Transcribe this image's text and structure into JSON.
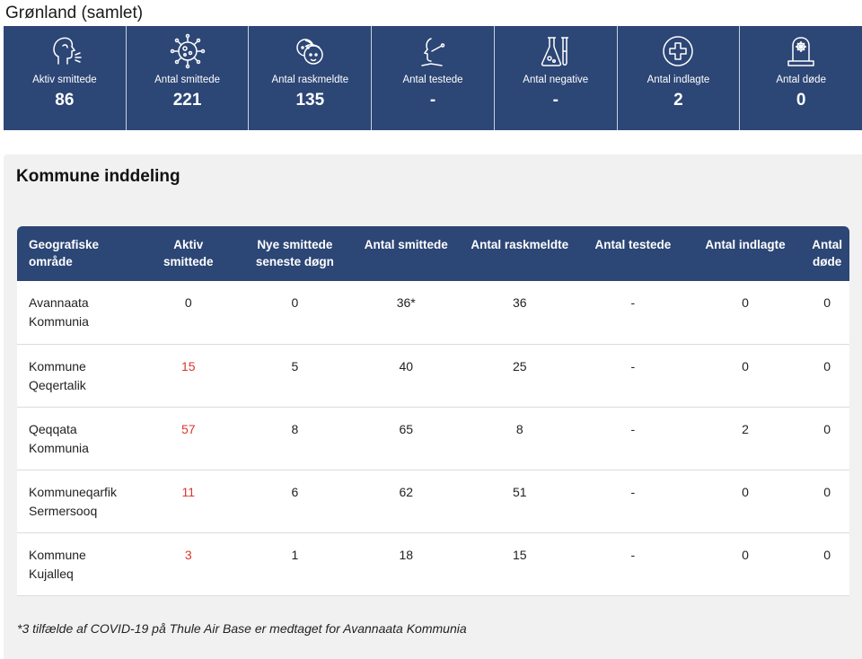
{
  "page_title": "Grønland (samlet)",
  "stats": [
    {
      "icon": "cough-icon",
      "label": "Aktiv smittede",
      "value": "86"
    },
    {
      "icon": "virus-icon",
      "label": "Antal smittede",
      "value": "221"
    },
    {
      "icon": "people-icon",
      "label": "Antal raskmeldte",
      "value": "135"
    },
    {
      "icon": "swab-test-icon",
      "label": "Antal testede",
      "value": "-"
    },
    {
      "icon": "lab-flask-icon",
      "label": "Antal negative",
      "value": "-"
    },
    {
      "icon": "hospital-cross-icon",
      "label": "Antal indlagte",
      "value": "2"
    },
    {
      "icon": "gravestone-icon",
      "label": "Antal døde",
      "value": "0"
    }
  ],
  "panel": {
    "title": "Kommune inddeling",
    "columns": [
      "Geografiske område",
      "Aktiv smittede",
      "Nye smittede seneste døgn",
      "Antal smittede",
      "Antal raskmeldte",
      "Antal testede",
      "Antal indlagte",
      "Antal døde"
    ],
    "rows": [
      [
        "Avannaata Kommunia",
        "0",
        "0",
        "36*",
        "36",
        "-",
        "0",
        "0"
      ],
      [
        "Kommune Qeqertalik",
        "15",
        "5",
        "40",
        "25",
        "-",
        "0",
        "0"
      ],
      [
        "Qeqqata Kommunia",
        "57",
        "8",
        "65",
        "8",
        "-",
        "2",
        "0"
      ],
      [
        "Kommuneqarfik Sermersooq",
        "11",
        "6",
        "62",
        "51",
        "-",
        "0",
        "0"
      ],
      [
        "Kommune Kujalleq",
        "3",
        "1",
        "18",
        "15",
        "-",
        "0",
        "0"
      ]
    ],
    "footnote": "*3 tilfælde af COVID-19 på Thule Air Base er medtaget for Avannaata Kommunia"
  },
  "colors": {
    "header_blue": "#2c4675",
    "alert_red": "#d8372e",
    "panel_bg": "#f1f1f1"
  }
}
